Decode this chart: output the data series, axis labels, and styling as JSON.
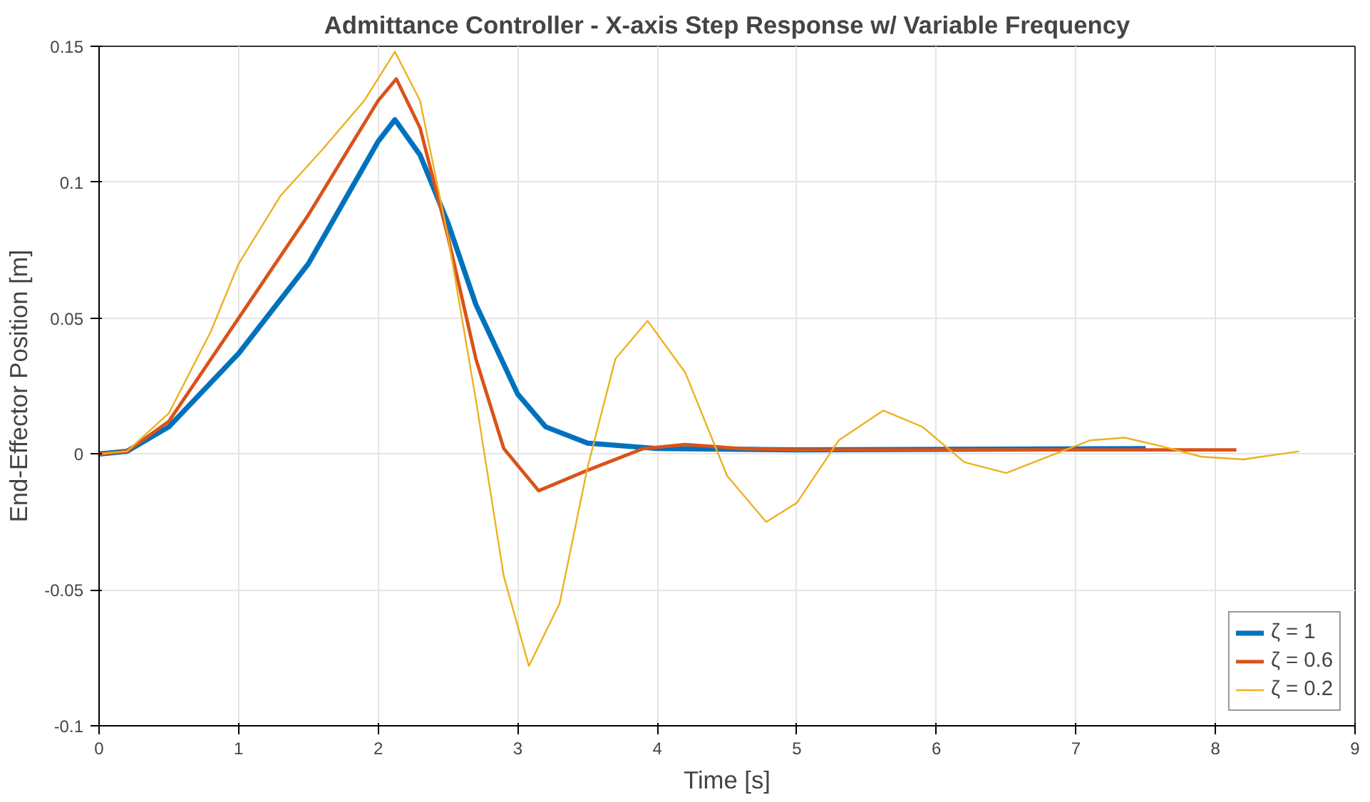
{
  "chart_data": {
    "type": "line",
    "title": "Admittance Controller - X-axis Step Response w/ Variable Frequency",
    "xlabel": "Time [s]",
    "ylabel": "End-Effector Position [m]",
    "xlim": [
      0,
      9
    ],
    "ylim": [
      -0.1,
      0.15
    ],
    "xticks": [
      0,
      1,
      2,
      3,
      4,
      5,
      6,
      7,
      8,
      9
    ],
    "yticks": [
      -0.1,
      -0.05,
      0,
      0.05,
      0.1,
      0.15
    ],
    "grid": true,
    "legend": "bottom right",
    "line_style": "solid",
    "series": [
      {
        "name": "ζ = 1",
        "color": "#0072bd",
        "x": [
          0,
          0.2,
          0.5,
          1.0,
          1.5,
          2.0,
          2.12,
          2.3,
          2.5,
          2.7,
          3.0,
          3.2,
          3.5,
          4.0,
          5.0,
          7.5
        ],
        "values": [
          0,
          0.001,
          0.01,
          0.037,
          0.07,
          0.115,
          0.123,
          0.11,
          0.085,
          0.055,
          0.022,
          0.01,
          0.004,
          0.002,
          0.0015,
          0.002
        ]
      },
      {
        "name": "ζ = 0.6",
        "color": "#d95319",
        "x": [
          0,
          0.2,
          0.5,
          1.0,
          1.5,
          2.0,
          2.13,
          2.3,
          2.5,
          2.7,
          2.9,
          3.15,
          3.5,
          3.9,
          4.2,
          4.6,
          5.0,
          8.15
        ],
        "values": [
          0,
          0.001,
          0.012,
          0.05,
          0.088,
          0.13,
          0.138,
          0.12,
          0.08,
          0.035,
          0.002,
          -0.0135,
          -0.006,
          0.002,
          0.0035,
          0.002,
          0.0015,
          0.0015
        ]
      },
      {
        "name": "ζ = 0.2",
        "color": "#edb120",
        "x": [
          0,
          0.2,
          0.5,
          0.8,
          1.0,
          1.3,
          1.6,
          1.9,
          2.12,
          2.3,
          2.5,
          2.7,
          2.9,
          3.08,
          3.3,
          3.5,
          3.7,
          3.93,
          4.2,
          4.5,
          4.78,
          5.0,
          5.3,
          5.62,
          5.9,
          6.2,
          6.5,
          6.8,
          7.1,
          7.35,
          7.6,
          7.9,
          8.2,
          8.6
        ],
        "values": [
          0,
          0.001,
          0.015,
          0.045,
          0.07,
          0.095,
          0.112,
          0.13,
          0.148,
          0.13,
          0.08,
          0.02,
          -0.045,
          -0.078,
          -0.055,
          -0.005,
          0.035,
          0.049,
          0.03,
          -0.008,
          -0.025,
          -0.018,
          0.005,
          0.016,
          0.01,
          -0.003,
          -0.007,
          -0.001,
          0.005,
          0.006,
          0.003,
          -0.001,
          -0.002,
          0.001
        ]
      }
    ]
  }
}
